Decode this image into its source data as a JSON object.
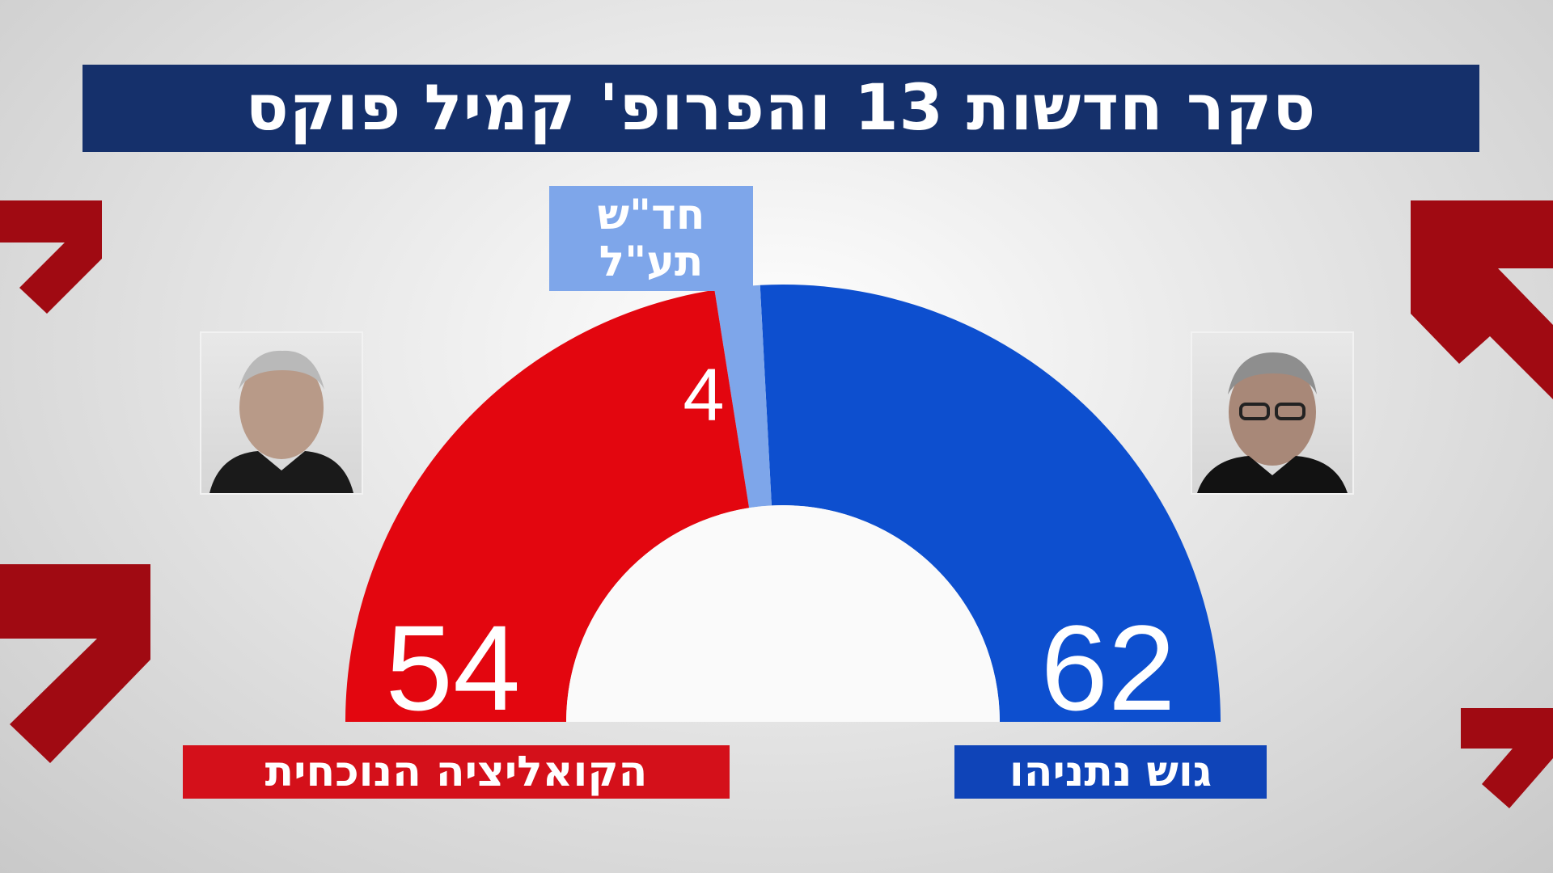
{
  "title": "סקר חדשות 13 והפרופ' קמיל פוקס",
  "chart_data": {
    "type": "pie",
    "subtype": "semicircle",
    "total": 120,
    "series": [
      {
        "name": "גוש נתניהו",
        "value": 62,
        "color": "#0d4fcf"
      },
      {
        "name": "חד\"ש תע\"ל",
        "value": 4,
        "color": "#7ea6ea"
      },
      {
        "name": "הקואליציה הנוכחית",
        "value": 54,
        "color": "#e3060f"
      }
    ]
  },
  "labels": {
    "right_bloc": "גוש נתניהו",
    "left_bloc": "הקואליציה הנוכחית",
    "undecided_line1": "חד\"ש",
    "undecided_line2": "תע\"ל"
  },
  "values": {
    "right": "62",
    "middle": "4",
    "left": "54"
  },
  "colors": {
    "title_bg": "#15306b",
    "red": "#e3060f",
    "blue": "#0d4fcf",
    "light_blue": "#7ea6ea"
  }
}
